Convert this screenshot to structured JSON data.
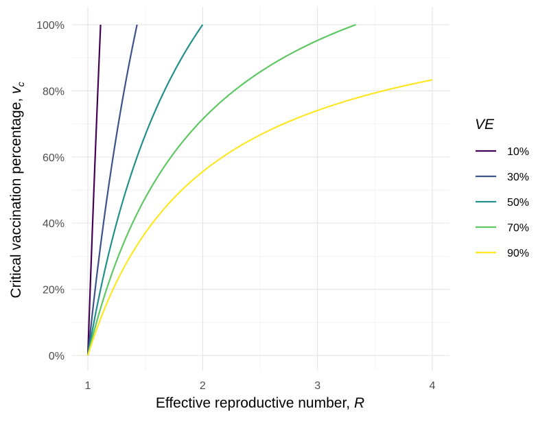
{
  "chart_data": {
    "type": "line",
    "xlabel_text": "Effective reproductive number, ",
    "xlabel_var": "R",
    "ylabel_text": "Critical vaccination percentage, ",
    "ylabel_var": "v",
    "ylabel_sub": "c",
    "xlim": [
      1,
      4
    ],
    "ylim": [
      0,
      100
    ],
    "x_ticks": [
      1,
      2,
      3,
      4
    ],
    "x_tick_labels": [
      "1",
      "2",
      "3",
      "4"
    ],
    "y_ticks": [
      0,
      20,
      40,
      60,
      80,
      100
    ],
    "y_tick_labels": [
      "0%",
      "20%",
      "40%",
      "60%",
      "80%",
      "100%"
    ],
    "grid": true,
    "formula": "v_c = (1 - 1/R) / VE",
    "legend": {
      "title": "VE",
      "position": "right"
    },
    "series": [
      {
        "name": "10%",
        "ve": 0.1,
        "color": "#440154",
        "x": [
          1,
          1.111
        ],
        "y": [
          0,
          100
        ]
      },
      {
        "name": "30%",
        "ve": 0.3,
        "color": "#3B528B",
        "x": [
          1,
          1.2,
          1.3,
          1.429
        ],
        "y": [
          0,
          55.6,
          76.9,
          100
        ]
      },
      {
        "name": "50%",
        "ve": 0.5,
        "color": "#21908C",
        "x": [
          1,
          1.25,
          1.5,
          1.75,
          2
        ],
        "y": [
          0,
          40,
          66.7,
          85.7,
          100
        ]
      },
      {
        "name": "70%",
        "ve": 0.7,
        "color": "#5DC863",
        "x": [
          1,
          1.5,
          2,
          2.5,
          3,
          3.333
        ],
        "y": [
          0,
          47.6,
          71.4,
          85.7,
          95.2,
          100
        ]
      },
      {
        "name": "90%",
        "ve": 0.9,
        "color": "#FDE725",
        "x": [
          1,
          1.5,
          2,
          2.5,
          3,
          3.5,
          4
        ],
        "y": [
          0,
          37,
          55.6,
          66.7,
          74.1,
          79.4,
          83.3
        ]
      }
    ]
  }
}
